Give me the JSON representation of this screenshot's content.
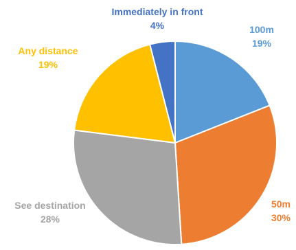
{
  "chart_data": {
    "type": "pie",
    "slices": [
      {
        "label": "100m",
        "value": 19,
        "pct_text": "19%",
        "color": "#5B9BD5"
      },
      {
        "label": "50m",
        "value": 30,
        "pct_text": "30%",
        "color": "#ED7D31"
      },
      {
        "label": "See destination",
        "value": 28,
        "pct_text": "28%",
        "color": "#A5A5A5"
      },
      {
        "label": "Any distance",
        "value": 19,
        "pct_text": "19%",
        "color": "#FFC000"
      },
      {
        "label": "Immediately in front",
        "value": 4,
        "pct_text": "4%",
        "color": "#4472C4"
      }
    ],
    "start": "12 o'clock",
    "direction": "clockwise",
    "legend": "none",
    "labels": "outside, colored by slice"
  }
}
